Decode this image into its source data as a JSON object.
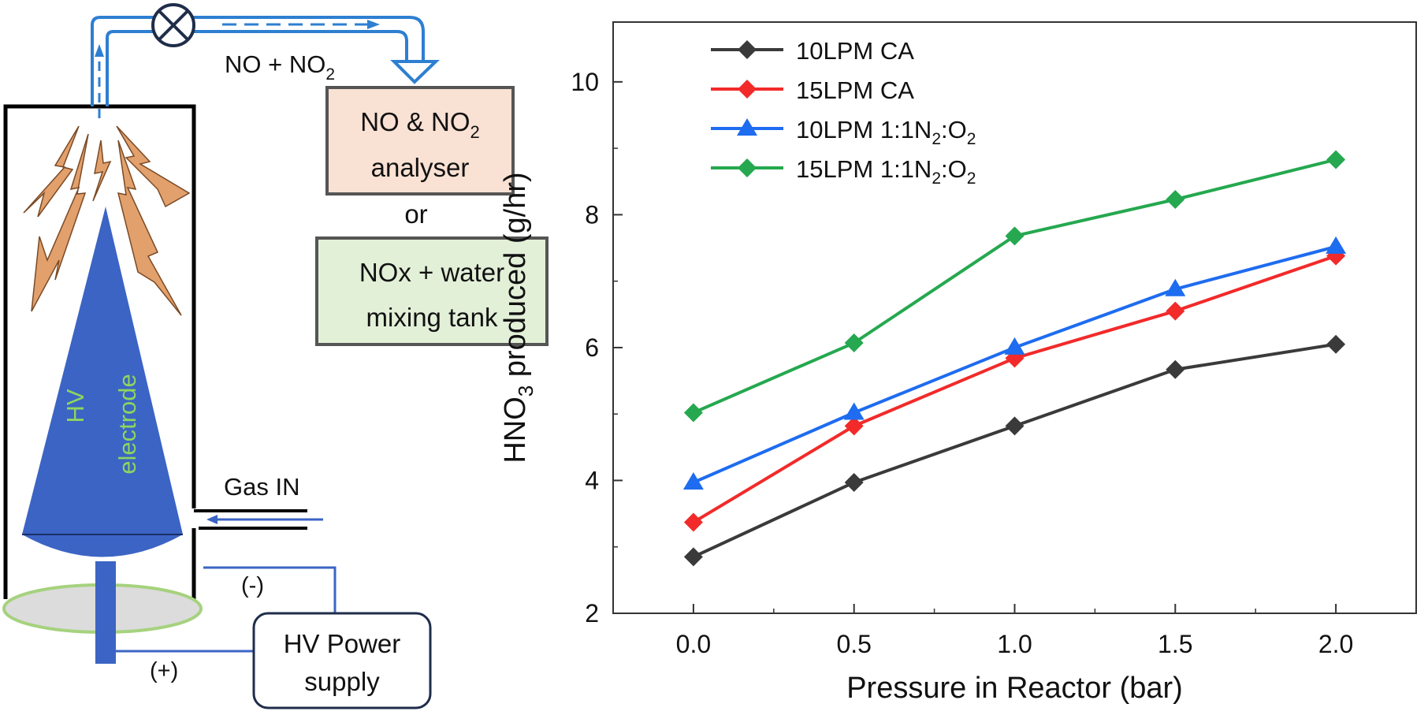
{
  "diagram": {
    "flow_label": {
      "main": "NO + NO",
      "sub": "2"
    },
    "analyser_box": {
      "line1_main": "NO & NO",
      "line1_sub": "2",
      "line2": "analyser"
    },
    "or_text": "or",
    "mixing_box": {
      "line1": "NOx + water",
      "line2": "mixing tank"
    },
    "electrode": {
      "line1": "HV",
      "line2": "electrode"
    },
    "gas_in_label": "Gas IN",
    "neg_label": "(-)",
    "pos_label": "(+)",
    "power_supply": {
      "line1": "HV Power",
      "line2": "supply"
    },
    "colors": {
      "pipe": "#2d7fd1",
      "electrode": "#3b64c4",
      "electrode_text": "#8fd45f",
      "analyser_fill": "#f9e1d3",
      "mixing_fill": "#e3f0d8",
      "spark": "#e2a06c",
      "ring_stroke": "#a6d27e"
    }
  },
  "chart_data": {
    "type": "line",
    "title": "",
    "xlabel": "Pressure in Reactor (bar)",
    "ylabel": {
      "pre": "HNO",
      "sub": "3",
      "post": " produced (g/hr)"
    },
    "x": [
      0.0,
      0.5,
      1.0,
      1.5,
      2.0
    ],
    "x_tick_labels": [
      "0.0",
      "0.5",
      "1.0",
      "1.5",
      "2.0"
    ],
    "y_tick_labels": [
      "2",
      "4",
      "6",
      "8",
      "10"
    ],
    "xlim": [
      -0.25,
      2.25
    ],
    "ylim": [
      2,
      10.9
    ],
    "legend_position": "top-left",
    "series": [
      {
        "name": "10LPM CA",
        "legend": [
          {
            "t": "10LPM CA",
            "s": false
          }
        ],
        "color": "#3a3a3a",
        "marker": "diamond",
        "values": [
          2.85,
          3.97,
          4.82,
          5.67,
          6.05
        ]
      },
      {
        "name": "15LPM CA",
        "legend": [
          {
            "t": "15LPM CA",
            "s": false
          }
        ],
        "color": "#f22a2a",
        "marker": "diamond",
        "values": [
          3.37,
          4.82,
          5.84,
          6.55,
          7.38
        ]
      },
      {
        "name": "10LPM 1:1N2:O2",
        "legend": [
          {
            "t": "10LPM 1:1N",
            "s": false
          },
          {
            "t": "2",
            "s": true
          },
          {
            "t": ":O",
            "s": false
          },
          {
            "t": "2",
            "s": true
          }
        ],
        "color": "#1e6cf0",
        "marker": "triangle",
        "values": [
          3.97,
          5.02,
          6.0,
          6.88,
          7.52
        ]
      },
      {
        "name": "15LPM 1:1N2:O2",
        "legend": [
          {
            "t": "15LPM 1:1N",
            "s": false
          },
          {
            "t": "2",
            "s": true
          },
          {
            "t": ":O",
            "s": false
          },
          {
            "t": "2",
            "s": true
          }
        ],
        "color": "#25a84f",
        "marker": "diamond",
        "values": [
          5.02,
          6.07,
          7.68,
          8.23,
          8.83
        ]
      }
    ]
  }
}
